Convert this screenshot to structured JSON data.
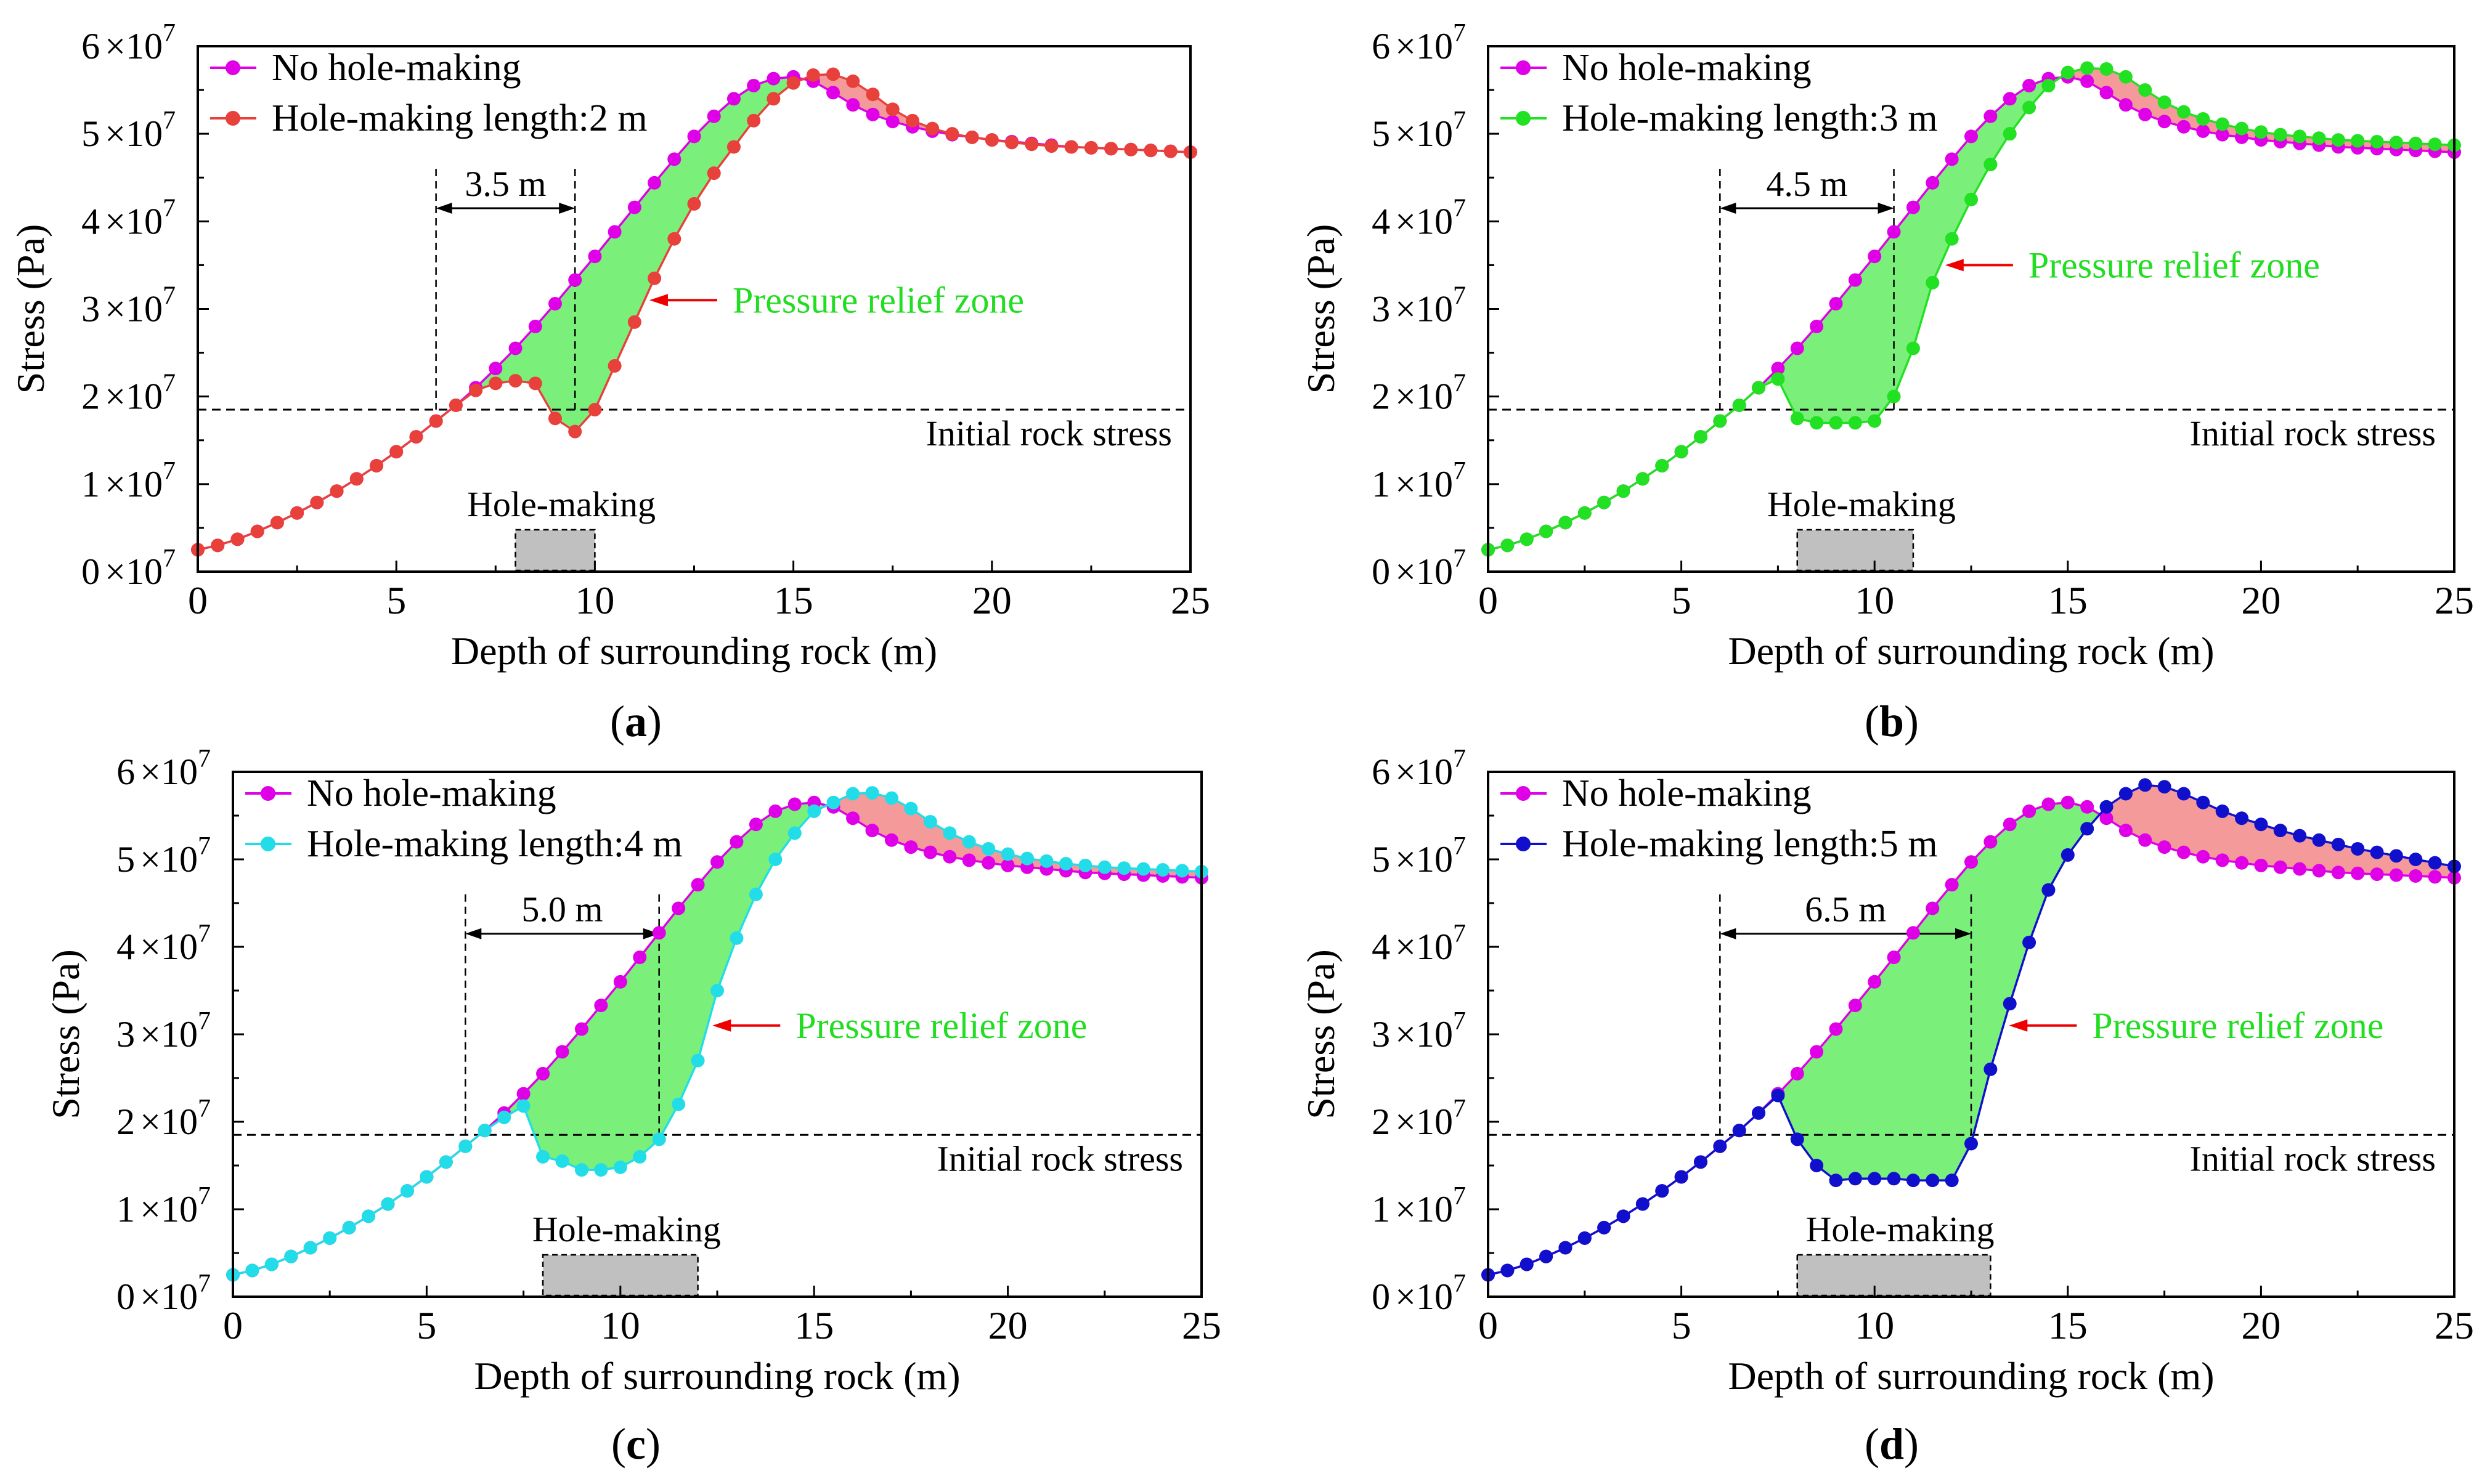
{
  "figure": {
    "xlabel": "Depth of surrounding rock (m)",
    "ylabel": "Stress (Pa)",
    "x_ticks": [
      "0",
      "5",
      "10",
      "15",
      "20",
      "25"
    ],
    "y_ticks": [
      {
        "mant": "0",
        "exp": "7"
      },
      {
        "mant": "1",
        "exp": "7"
      },
      {
        "mant": "2",
        "exp": "7"
      },
      {
        "mant": "3",
        "exp": "7"
      },
      {
        "mant": "4",
        "exp": "7"
      },
      {
        "mant": "5",
        "exp": "7"
      },
      {
        "mant": "6",
        "exp": "7"
      }
    ],
    "times_sign": "×10",
    "initial_rock_stress_label": "Initial rock stress",
    "hole_making_label": "Hole-making",
    "pressure_relief_label": "Pressure relief zone",
    "colors": {
      "reference": "#e000e8",
      "relief_fill": "#7af07a",
      "increase_fill": "#f59a9a",
      "annotation_green": "#22dd22",
      "arrow_red": "#ee0000",
      "hole_box": "#c0c0c0"
    }
  },
  "chart_data": [
    {
      "type": "line",
      "panel_label": "a",
      "xlim": [
        0,
        25
      ],
      "ylim": [
        0,
        60000000
      ],
      "initial_rock_stress": 18500000,
      "hole_range": [
        8,
        10
      ],
      "span_label": "3.5 m",
      "span": [
        6,
        9.5
      ],
      "series": [
        {
          "name": "No hole-making",
          "color": "#e000e8",
          "x": [
            0,
            0.5,
            1,
            1.5,
            2,
            2.5,
            3,
            3.5,
            4,
            4.5,
            5,
            5.5,
            6,
            6.5,
            7,
            7.5,
            8,
            8.5,
            9,
            9.5,
            10,
            10.5,
            11,
            11.5,
            12,
            12.5,
            13,
            13.5,
            14,
            14.5,
            15,
            15.5,
            16,
            16.5,
            17,
            17.5,
            18,
            18.5,
            19,
            19.5,
            20,
            20.5,
            21,
            21.5,
            22,
            22.5,
            23,
            23.5,
            24,
            24.5,
            25
          ],
          "y": [
            2500000,
            3000000,
            3700000,
            4600000,
            5600000,
            6700000,
            7900000,
            9200000,
            10600000,
            12100000,
            13700000,
            15400000,
            17200000,
            19000000,
            21000000,
            23200000,
            25500000,
            28000000,
            30600000,
            33300000,
            36000000,
            38800000,
            41600000,
            44400000,
            47100000,
            49700000,
            52000000,
            54000000,
            55500000,
            56300000,
            56500000,
            56000000,
            54700000,
            53300000,
            52200000,
            51400000,
            50800000,
            50300000,
            49900000,
            49600000,
            49300000,
            49100000,
            48900000,
            48700000,
            48500000,
            48400000,
            48300000,
            48200000,
            48100000,
            48000000,
            47900000
          ]
        },
        {
          "name": "Hole-making length:2 m",
          "color": "#e8403a",
          "x": [
            0,
            0.5,
            1,
            1.5,
            2,
            2.5,
            3,
            3.5,
            4,
            4.5,
            5,
            5.5,
            6,
            6.5,
            7,
            7.5,
            8,
            8.5,
            9,
            9.5,
            10,
            10.5,
            11,
            11.5,
            12,
            12.5,
            13,
            13.5,
            14,
            14.5,
            15,
            15.5,
            16,
            16.5,
            17,
            17.5,
            18,
            18.5,
            19,
            19.5,
            20,
            20.5,
            21,
            21.5,
            22,
            22.5,
            23,
            23.5,
            24,
            24.5,
            25
          ],
          "y": [
            2500000,
            3000000,
            3700000,
            4600000,
            5600000,
            6700000,
            7900000,
            9200000,
            10600000,
            12100000,
            13700000,
            15400000,
            17200000,
            19000000,
            20700000,
            21500000,
            21800000,
            21500000,
            17500000,
            16000000,
            18500000,
            23500000,
            28500000,
            33500000,
            38000000,
            42000000,
            45500000,
            48500000,
            51500000,
            54000000,
            55800000,
            56700000,
            56800000,
            56000000,
            54500000,
            52800000,
            51500000,
            50600000,
            50000000,
            49600000,
            49300000,
            49000000,
            48800000,
            48600000,
            48500000,
            48400000,
            48300000,
            48200000,
            48100000,
            48000000,
            47900000
          ]
        }
      ]
    },
    {
      "type": "line",
      "panel_label": "b",
      "xlim": [
        0,
        25
      ],
      "ylim": [
        0,
        60000000
      ],
      "initial_rock_stress": 18500000,
      "hole_range": [
        8,
        11
      ],
      "span_label": "4.5 m",
      "span": [
        6,
        10.5
      ],
      "series": [
        {
          "name": "No hole-making",
          "color": "#e000e8",
          "x": [
            0,
            0.5,
            1,
            1.5,
            2,
            2.5,
            3,
            3.5,
            4,
            4.5,
            5,
            5.5,
            6,
            6.5,
            7,
            7.5,
            8,
            8.5,
            9,
            9.5,
            10,
            10.5,
            11,
            11.5,
            12,
            12.5,
            13,
            13.5,
            14,
            14.5,
            15,
            15.5,
            16,
            16.5,
            17,
            17.5,
            18,
            18.5,
            19,
            19.5,
            20,
            20.5,
            21,
            21.5,
            22,
            22.5,
            23,
            23.5,
            24,
            24.5,
            25
          ],
          "y": [
            2500000,
            3000000,
            3700000,
            4600000,
            5600000,
            6700000,
            7900000,
            9200000,
            10600000,
            12100000,
            13700000,
            15400000,
            17200000,
            19000000,
            21000000,
            23200000,
            25500000,
            28000000,
            30600000,
            33300000,
            36000000,
            38800000,
            41600000,
            44400000,
            47100000,
            49700000,
            52000000,
            54000000,
            55500000,
            56300000,
            56500000,
            56000000,
            54700000,
            53300000,
            52200000,
            51400000,
            50800000,
            50300000,
            49900000,
            49600000,
            49300000,
            49100000,
            48900000,
            48700000,
            48500000,
            48400000,
            48300000,
            48200000,
            48100000,
            48000000,
            47900000
          ]
        },
        {
          "name": "Hole-making length:3 m",
          "color": "#22e022",
          "x": [
            0,
            0.5,
            1,
            1.5,
            2,
            2.5,
            3,
            3.5,
            4,
            4.5,
            5,
            5.5,
            6,
            6.5,
            7,
            7.5,
            8,
            8.5,
            9,
            9.5,
            10,
            10.5,
            11,
            11.5,
            12,
            12.5,
            13,
            13.5,
            14,
            14.5,
            15,
            15.5,
            16,
            16.5,
            17,
            17.5,
            18,
            18.5,
            19,
            19.5,
            20,
            20.5,
            21,
            21.5,
            22,
            22.5,
            23,
            23.5,
            24,
            24.5,
            25
          ],
          "y": [
            2500000,
            3000000,
            3700000,
            4600000,
            5600000,
            6700000,
            7900000,
            9200000,
            10600000,
            12100000,
            13700000,
            15400000,
            17200000,
            19000000,
            21000000,
            22000000,
            17500000,
            17000000,
            17000000,
            17000000,
            17200000,
            20000000,
            25500000,
            33000000,
            38000000,
            42500000,
            46500000,
            50000000,
            53000000,
            55500000,
            57000000,
            57500000,
            57400000,
            56500000,
            55000000,
            53600000,
            52500000,
            51700000,
            51100000,
            50600000,
            50200000,
            49900000,
            49700000,
            49500000,
            49300000,
            49200000,
            49100000,
            49000000,
            48900000,
            48800000,
            48700000
          ]
        }
      ]
    },
    {
      "type": "line",
      "panel_label": "c",
      "xlim": [
        0,
        25
      ],
      "ylim": [
        0,
        60000000
      ],
      "initial_rock_stress": 18500000,
      "hole_range": [
        8,
        12
      ],
      "span_label": "5.0 m",
      "span": [
        6,
        11
      ],
      "series": [
        {
          "name": "No hole-making",
          "color": "#e000e8",
          "x": [
            0,
            0.5,
            1,
            1.5,
            2,
            2.5,
            3,
            3.5,
            4,
            4.5,
            5,
            5.5,
            6,
            6.5,
            7,
            7.5,
            8,
            8.5,
            9,
            9.5,
            10,
            10.5,
            11,
            11.5,
            12,
            12.5,
            13,
            13.5,
            14,
            14.5,
            15,
            15.5,
            16,
            16.5,
            17,
            17.5,
            18,
            18.5,
            19,
            19.5,
            20,
            20.5,
            21,
            21.5,
            22,
            22.5,
            23,
            23.5,
            24,
            24.5,
            25
          ],
          "y": [
            2500000,
            3000000,
            3700000,
            4600000,
            5600000,
            6700000,
            7900000,
            9200000,
            10600000,
            12100000,
            13700000,
            15400000,
            17200000,
            19000000,
            21000000,
            23200000,
            25500000,
            28000000,
            30600000,
            33300000,
            36000000,
            38800000,
            41600000,
            44400000,
            47100000,
            49700000,
            52000000,
            54000000,
            55500000,
            56300000,
            56500000,
            56000000,
            54700000,
            53300000,
            52200000,
            51400000,
            50800000,
            50300000,
            49900000,
            49600000,
            49300000,
            49100000,
            48900000,
            48700000,
            48500000,
            48400000,
            48300000,
            48200000,
            48100000,
            48000000,
            47900000
          ]
        },
        {
          "name": "Hole-making length:4 m",
          "color": "#22dde8",
          "x": [
            0,
            0.5,
            1,
            1.5,
            2,
            2.5,
            3,
            3.5,
            4,
            4.5,
            5,
            5.5,
            6,
            6.5,
            7,
            7.5,
            8,
            8.5,
            9,
            9.5,
            10,
            10.5,
            11,
            11.5,
            12,
            12.5,
            13,
            13.5,
            14,
            14.5,
            15,
            15.5,
            16,
            16.5,
            17,
            17.5,
            18,
            18.5,
            19,
            19.5,
            20,
            20.5,
            21,
            21.5,
            22,
            22.5,
            23,
            23.5,
            24,
            24.5,
            25
          ],
          "y": [
            2500000,
            3000000,
            3700000,
            4600000,
            5600000,
            6700000,
            7900000,
            9200000,
            10600000,
            12100000,
            13700000,
            15400000,
            17200000,
            19000000,
            20500000,
            21800000,
            16000000,
            15500000,
            14500000,
            14500000,
            14800000,
            16000000,
            18000000,
            22000000,
            27000000,
            35000000,
            41000000,
            46000000,
            50000000,
            53000000,
            55500000,
            56500000,
            57500000,
            57600000,
            57000000,
            55800000,
            54300000,
            53000000,
            52000000,
            51200000,
            50600000,
            50100000,
            49800000,
            49500000,
            49300000,
            49100000,
            49000000,
            48900000,
            48800000,
            48700000,
            48600000
          ]
        }
      ]
    },
    {
      "type": "line",
      "panel_label": "d",
      "xlim": [
        0,
        25
      ],
      "ylim": [
        0,
        60000000
      ],
      "initial_rock_stress": 18500000,
      "hole_range": [
        8,
        13
      ],
      "span_label": "6.5 m",
      "span": [
        6,
        12.5
      ],
      "series": [
        {
          "name": "No hole-making",
          "color": "#e000e8",
          "x": [
            0,
            0.5,
            1,
            1.5,
            2,
            2.5,
            3,
            3.5,
            4,
            4.5,
            5,
            5.5,
            6,
            6.5,
            7,
            7.5,
            8,
            8.5,
            9,
            9.5,
            10,
            10.5,
            11,
            11.5,
            12,
            12.5,
            13,
            13.5,
            14,
            14.5,
            15,
            15.5,
            16,
            16.5,
            17,
            17.5,
            18,
            18.5,
            19,
            19.5,
            20,
            20.5,
            21,
            21.5,
            22,
            22.5,
            23,
            23.5,
            24,
            24.5,
            25
          ],
          "y": [
            2500000,
            3000000,
            3700000,
            4600000,
            5600000,
            6700000,
            7900000,
            9200000,
            10600000,
            12100000,
            13700000,
            15400000,
            17200000,
            19000000,
            21000000,
            23200000,
            25500000,
            28000000,
            30600000,
            33300000,
            36000000,
            38800000,
            41600000,
            44400000,
            47100000,
            49700000,
            52000000,
            54000000,
            55500000,
            56300000,
            56500000,
            56000000,
            54700000,
            53300000,
            52200000,
            51400000,
            50800000,
            50300000,
            49900000,
            49600000,
            49300000,
            49100000,
            48900000,
            48700000,
            48500000,
            48400000,
            48300000,
            48200000,
            48100000,
            48000000,
            47900000
          ]
        },
        {
          "name": "Hole-making length:5 m",
          "color": "#1010cc",
          "x": [
            0,
            0.5,
            1,
            1.5,
            2,
            2.5,
            3,
            3.5,
            4,
            4.5,
            5,
            5.5,
            6,
            6.5,
            7,
            7.5,
            8,
            8.5,
            9,
            9.5,
            10,
            10.5,
            11,
            11.5,
            12,
            12.5,
            13,
            13.5,
            14,
            14.5,
            15,
            15.5,
            16,
            16.5,
            17,
            17.5,
            18,
            18.5,
            19,
            19.5,
            20,
            20.5,
            21,
            21.5,
            22,
            22.5,
            23,
            23.5,
            24,
            24.5,
            25
          ],
          "y": [
            2500000,
            3000000,
            3700000,
            4600000,
            5600000,
            6700000,
            7900000,
            9200000,
            10600000,
            12100000,
            13700000,
            15400000,
            17200000,
            19000000,
            21000000,
            23000000,
            18000000,
            15000000,
            13300000,
            13500000,
            13500000,
            13500000,
            13300000,
            13300000,
            13300000,
            17500000,
            26000000,
            33500000,
            40500000,
            46500000,
            50500000,
            53500000,
            56000000,
            57500000,
            58500000,
            58300000,
            57500000,
            56500000,
            55500000,
            54700000,
            54000000,
            53300000,
            52700000,
            52200000,
            51700000,
            51200000,
            50800000,
            50400000,
            50000000,
            49600000,
            49200000
          ]
        }
      ]
    }
  ]
}
